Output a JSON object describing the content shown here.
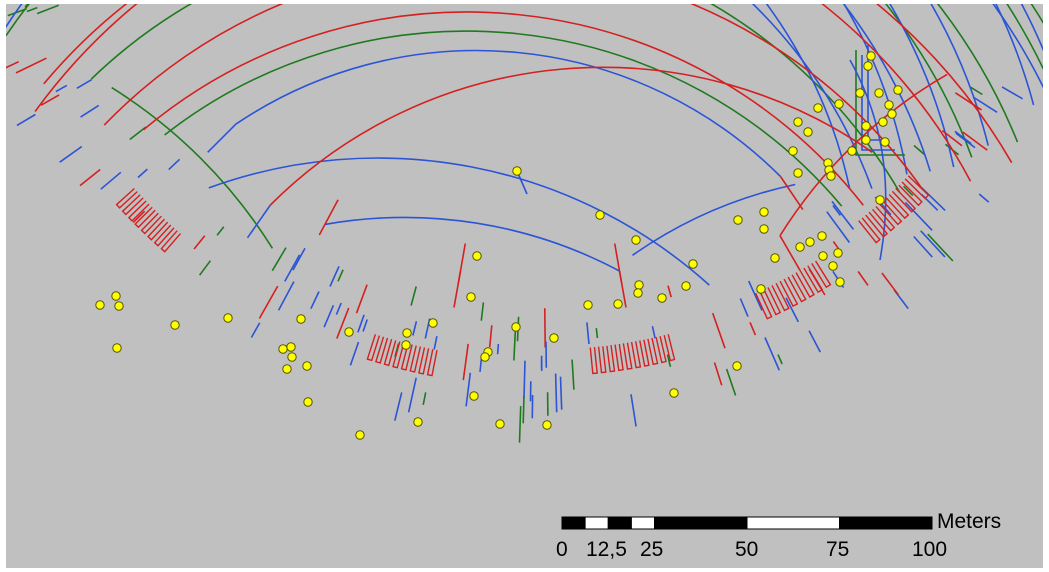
{
  "map": {
    "background": "#c0c0c0",
    "layer_colors": {
      "red": "#d42020",
      "blue": "#2b54d6",
      "green": "#1f7a1f"
    },
    "node_fill": "#ffff00",
    "node_stroke": "#555500"
  },
  "scale_bar": {
    "unit_label": "Meters",
    "ticks": [
      "0",
      "12,5",
      "25",
      "50",
      "75",
      "100"
    ],
    "tick_values_m": [
      0,
      12.5,
      25,
      50,
      75,
      100
    ]
  }
}
